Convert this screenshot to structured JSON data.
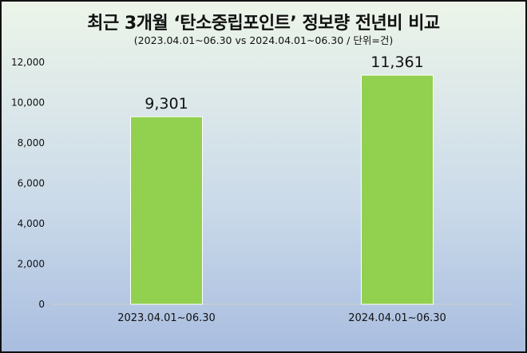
{
  "title": "최근 3개월 ‘탄소중립포인트’ 정보량  전년비 비교",
  "subtitle": "(2023.04.01~06.30 vs 2024.04.01~06.30  / 단위=건)",
  "colors": {
    "bar": "#92d050",
    "axis": "#d0d0d0"
  },
  "chart_data": {
    "type": "bar",
    "title": "최근 3개월 ‘탄소중립포인트’ 정보량  전년비 비교",
    "subtitle": "(2023.04.01~06.30 vs 2024.04.01~06.30  / 단위=건)",
    "categories": [
      "2023.04.01~06.30",
      "2024.04.01~06.30"
    ],
    "values": [
      9301,
      11361
    ],
    "data_labels": [
      "9,301",
      "11,361"
    ],
    "yticks": [
      "0",
      "2,000",
      "4,000",
      "6,000",
      "8,000",
      "10,000",
      "12,000"
    ],
    "ylim": [
      0,
      12000
    ],
    "grid": false,
    "legend": "none"
  }
}
